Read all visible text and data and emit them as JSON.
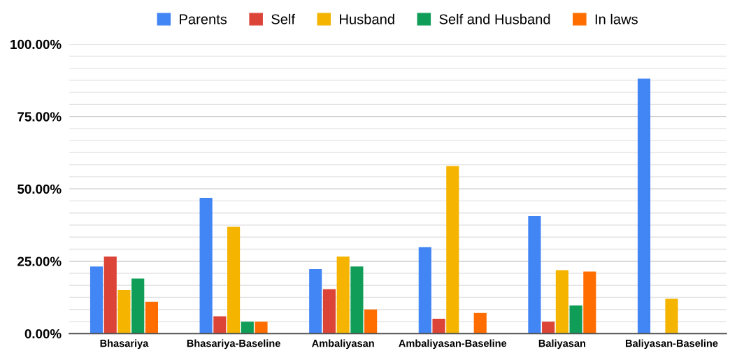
{
  "chart_data": {
    "type": "bar",
    "categories": [
      "Bhasariya",
      "Bhasariya-Baseline",
      "Ambaliyasan",
      "Ambaliyasan-Baseline",
      "Baliyasan",
      "Baliyasan-Baseline"
    ],
    "series": [
      {
        "name": "Parents",
        "color": "#4285f4",
        "values": [
          23.2,
          46.9,
          22.3,
          29.9,
          40.6,
          88.1
        ]
      },
      {
        "name": "Self",
        "color": "#db4437",
        "values": [
          26.6,
          6.0,
          15.3,
          5.1,
          4.1,
          null
        ]
      },
      {
        "name": "Husband",
        "color": "#f4b400",
        "values": [
          15.0,
          36.9,
          26.6,
          57.9,
          21.9,
          12.0
        ]
      },
      {
        "name": "Self and Husband",
        "color": "#0f9d58",
        "values": [
          19.0,
          4.1,
          23.2,
          null,
          9.7,
          null
        ]
      },
      {
        "name": "In laws",
        "color": "#ff6d00",
        "values": [
          11.0,
          4.1,
          8.3,
          7.1,
          21.4,
          null
        ]
      }
    ],
    "ylim": [
      0,
      100
    ],
    "yticks": [
      {
        "value": 0,
        "label": "0.00%"
      },
      {
        "value": 4.1667,
        "label": null
      },
      {
        "value": 8.3333,
        "label": null
      },
      {
        "value": 12.5,
        "label": null
      },
      {
        "value": 16.6667,
        "label": null
      },
      {
        "value": 20.8333,
        "label": null
      },
      {
        "value": 25,
        "label": "25.00%"
      },
      {
        "value": 29.1667,
        "label": null
      },
      {
        "value": 33.3333,
        "label": null
      },
      {
        "value": 37.5,
        "label": null
      },
      {
        "value": 41.6667,
        "label": null
      },
      {
        "value": 45.8333,
        "label": null
      },
      {
        "value": 50,
        "label": "50.00%"
      },
      {
        "value": 54.1667,
        "label": null
      },
      {
        "value": 58.3333,
        "label": null
      },
      {
        "value": 62.5,
        "label": null
      },
      {
        "value": 66.6667,
        "label": null
      },
      {
        "value": 70.8333,
        "label": null
      },
      {
        "value": 75,
        "label": "75.00%"
      },
      {
        "value": 79.1667,
        "label": null
      },
      {
        "value": 83.3333,
        "label": null
      },
      {
        "value": 87.5,
        "label": null
      },
      {
        "value": 91.6667,
        "label": null
      },
      {
        "value": 95.8333,
        "label": null
      },
      {
        "value": 100,
        "label": "100.00%"
      }
    ],
    "grid": "y",
    "legend": "top"
  }
}
